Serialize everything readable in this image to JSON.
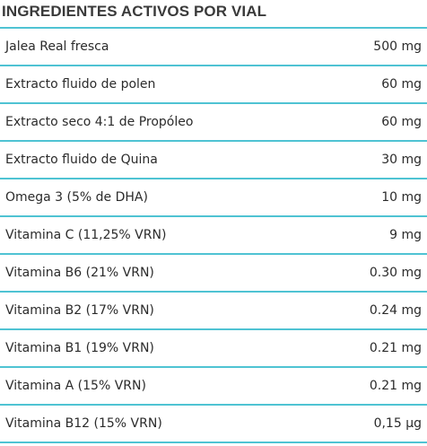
{
  "title": "INGREDIENTES ACTIVOS POR VIAL",
  "colors": {
    "divider": "#4fc3d3",
    "text": "#2b2b2b",
    "background": "#ffffff"
  },
  "rows": [
    {
      "name": "Jalea Real fresca",
      "amount": "500 mg"
    },
    {
      "name": "Extracto fluido de polen",
      "amount": "60 mg"
    },
    {
      "name": "Extracto seco 4:1 de Propóleo",
      "amount": "60 mg"
    },
    {
      "name": "Extracto fluido de Quina",
      "amount": "30 mg"
    },
    {
      "name": "Omega 3 (5% de DHA)",
      "amount": "10 mg"
    },
    {
      "name": "Vitamina C (11,25% VRN)",
      "amount": "9 mg"
    },
    {
      "name": "Vitamina B6 (21% VRN)",
      "amount": "0.30 mg"
    },
    {
      "name": "Vitamina B2 (17% VRN)",
      "amount": "0.24 mg"
    },
    {
      "name": "Vitamina B1 (19% VRN)",
      "amount": "0.21 mg"
    },
    {
      "name": "Vitamina A (15% VRN)",
      "amount": "0.21 mg"
    },
    {
      "name": "Vitamina B12 (15% VRN)",
      "amount": "0,15 µg"
    }
  ]
}
